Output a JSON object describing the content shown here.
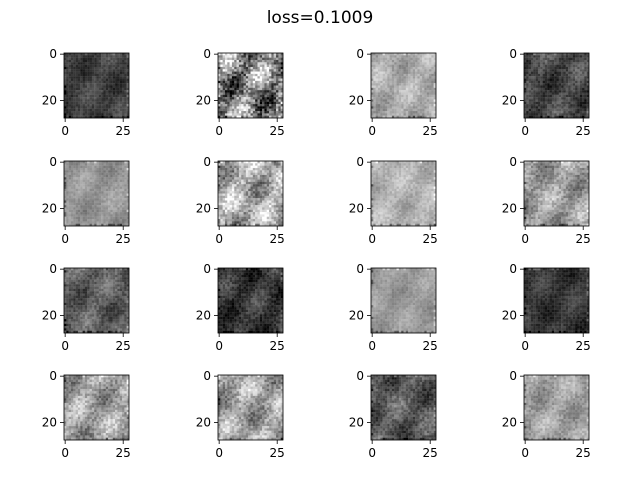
{
  "figure": {
    "title": "loss=0.1009",
    "background": "#ffffff"
  },
  "grid": {
    "rows": 4,
    "cols": 4
  },
  "axes_defaults": {
    "image_size": [
      28,
      28
    ],
    "x_tick_labels": [
      "0",
      "25"
    ],
    "y_tick_labels": [
      "0",
      "20"
    ],
    "x_ticks": [
      0,
      25
    ],
    "y_ticks": [
      0,
      20
    ],
    "colormap": "gray"
  },
  "panels": [
    {
      "index": 1,
      "mean_intensity": 0.24,
      "contrast": 0.1
    },
    {
      "index": 2,
      "mean_intensity": 0.52,
      "contrast": 0.42
    },
    {
      "index": 3,
      "mean_intensity": 0.67,
      "contrast": 0.12
    },
    {
      "index": 4,
      "mean_intensity": 0.26,
      "contrast": 0.14
    },
    {
      "index": 5,
      "mean_intensity": 0.58,
      "contrast": 0.09
    },
    {
      "index": 6,
      "mean_intensity": 0.67,
      "contrast": 0.26
    },
    {
      "index": 7,
      "mean_intensity": 0.7,
      "contrast": 0.1
    },
    {
      "index": 8,
      "mean_intensity": 0.61,
      "contrast": 0.18
    },
    {
      "index": 9,
      "mean_intensity": 0.36,
      "contrast": 0.14
    },
    {
      "index": 10,
      "mean_intensity": 0.2,
      "contrast": 0.14
    },
    {
      "index": 11,
      "mean_intensity": 0.6,
      "contrast": 0.08
    },
    {
      "index": 12,
      "mean_intensity": 0.2,
      "contrast": 0.1
    },
    {
      "index": 13,
      "mean_intensity": 0.62,
      "contrast": 0.2
    },
    {
      "index": 14,
      "mean_intensity": 0.63,
      "contrast": 0.22
    },
    {
      "index": 15,
      "mean_intensity": 0.34,
      "contrast": 0.16
    },
    {
      "index": 16,
      "mean_intensity": 0.62,
      "contrast": 0.13
    }
  ]
}
